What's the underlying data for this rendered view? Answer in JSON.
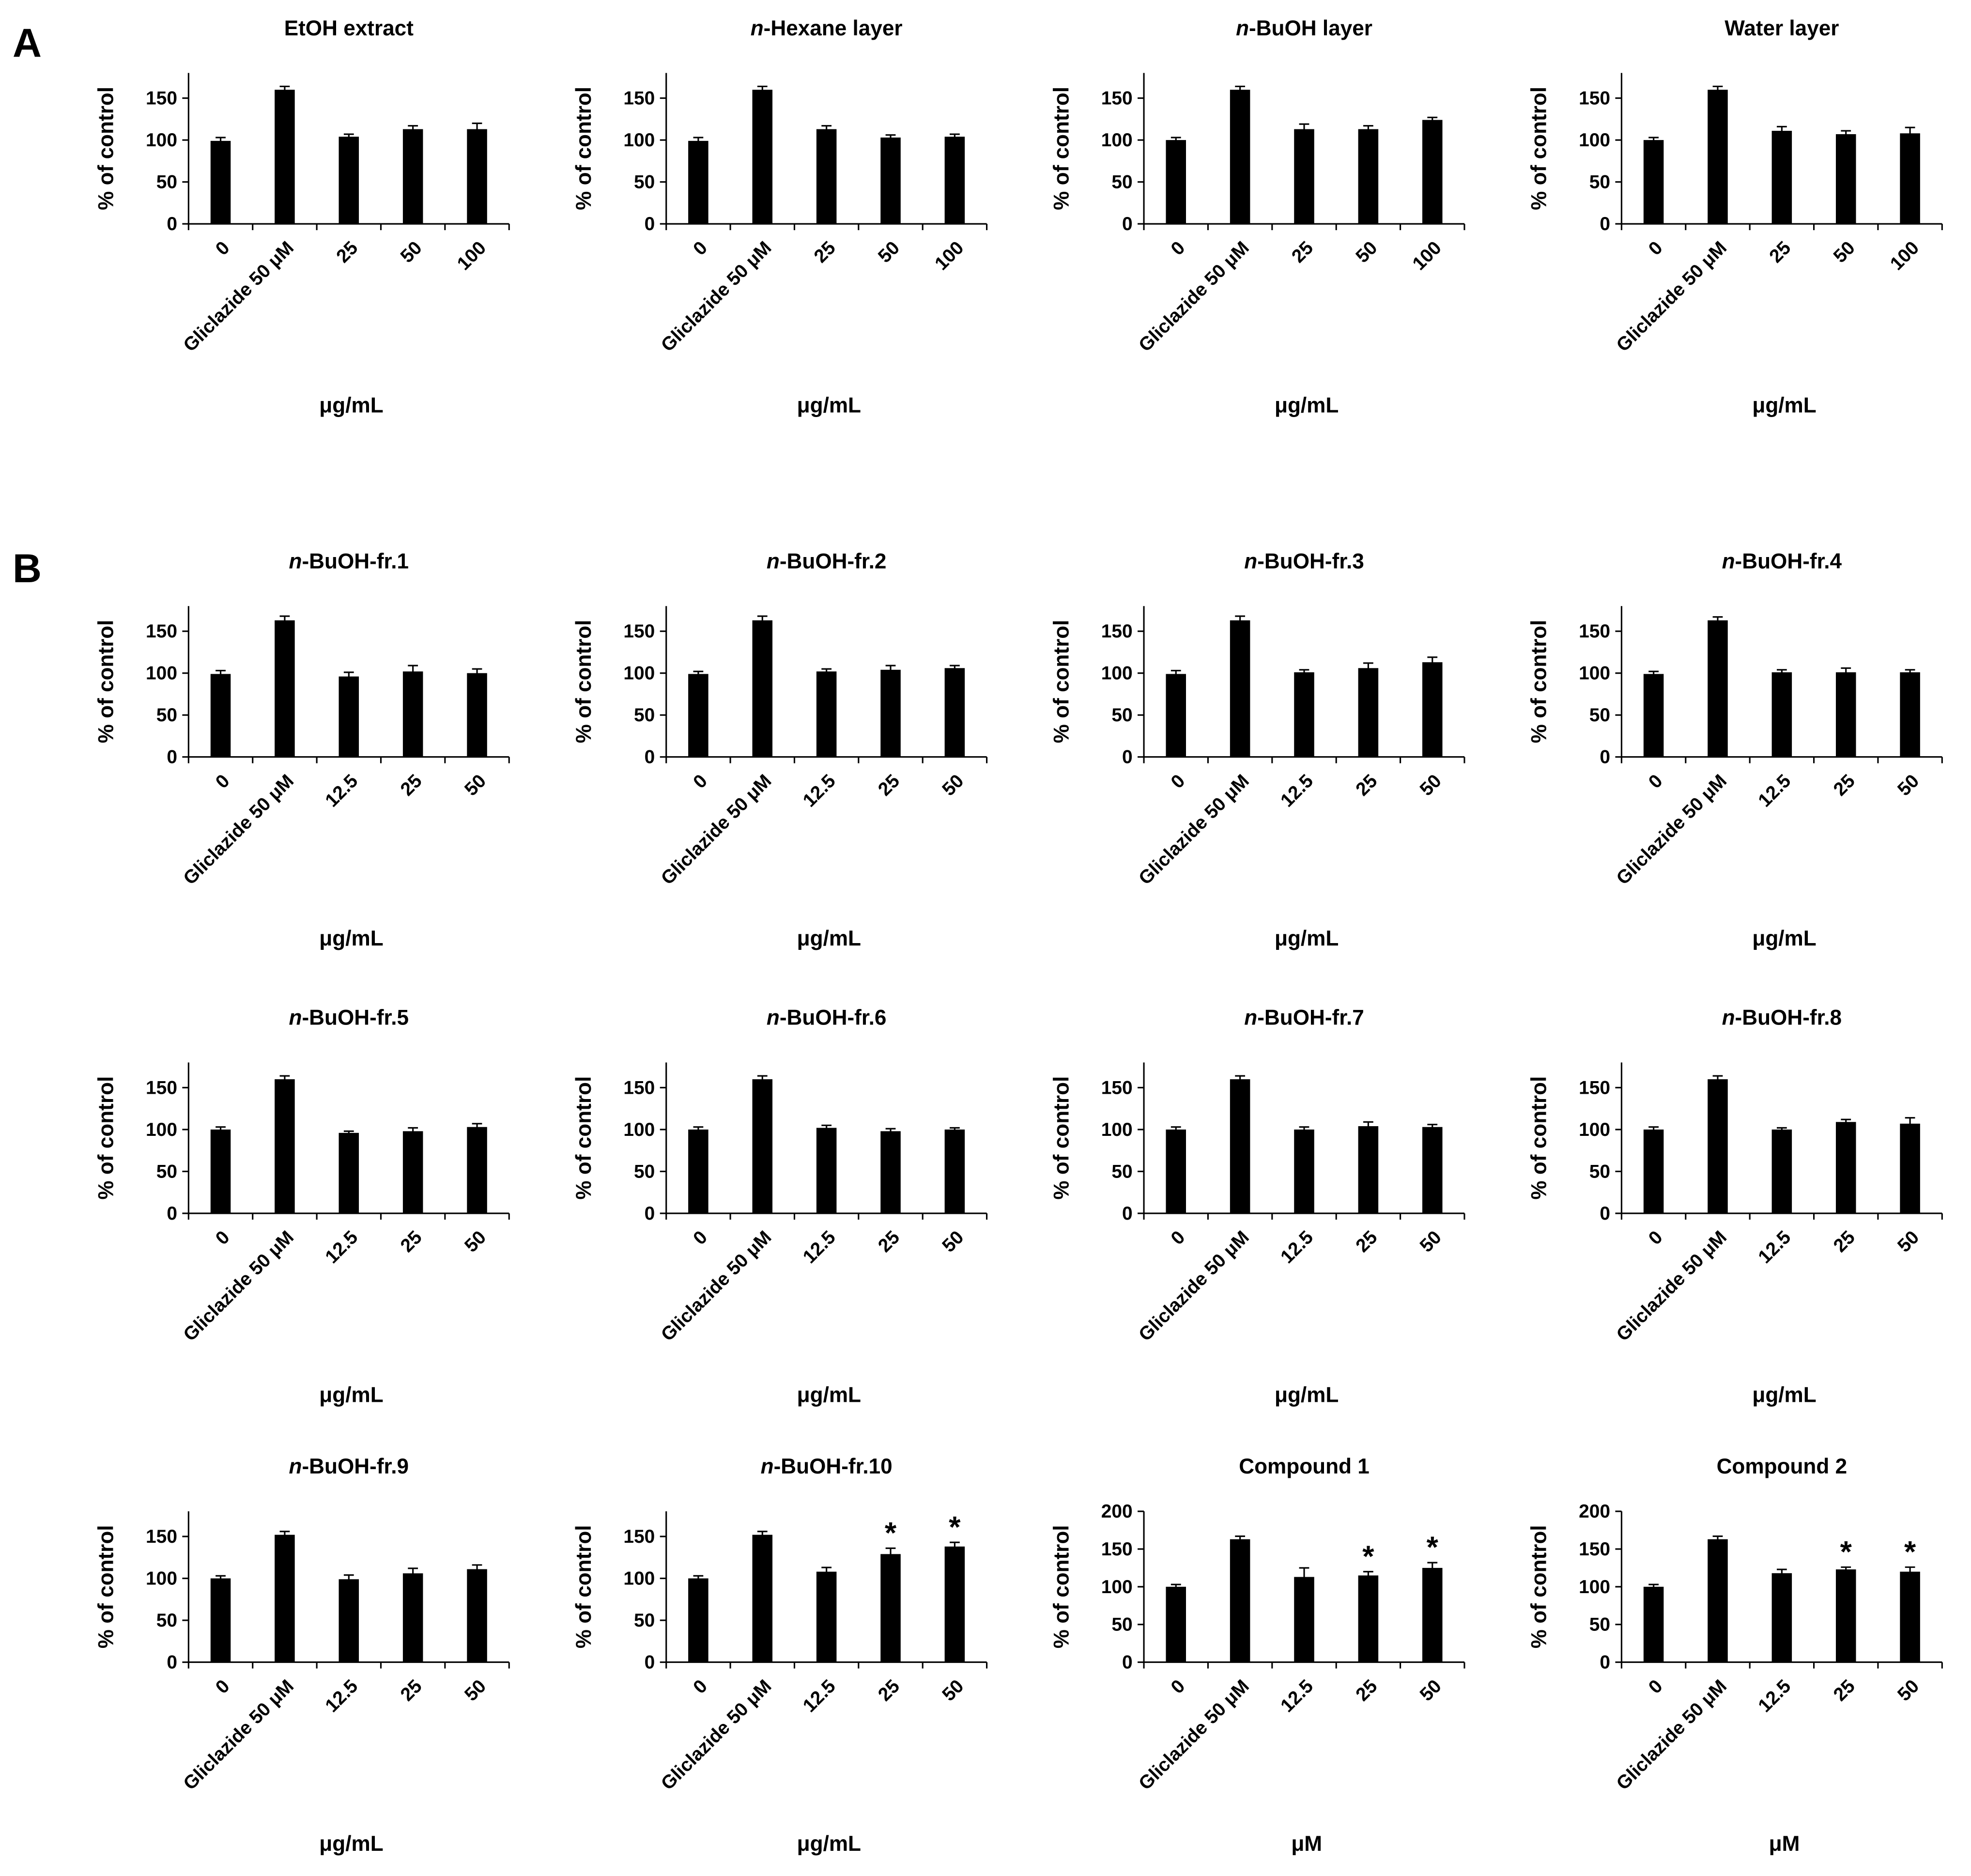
{
  "panel_labels": [
    "A",
    "B"
  ],
  "chart_data": [
    {
      "type": "bar",
      "title": "EtOH extract",
      "categories": [
        "0",
        "Gliclazide 50 μM",
        "25",
        "50",
        "100"
      ],
      "values": [
        99,
        160,
        104,
        113,
        113
      ],
      "errors": [
        4,
        4,
        3,
        4,
        7
      ],
      "ylim": [
        0,
        180
      ],
      "yticks": [
        0,
        50,
        100,
        150
      ],
      "xlabel": "μg/mL",
      "ylabel": "% of control",
      "color": "#000000"
    },
    {
      "type": "bar",
      "title": "n-Hexane layer",
      "categories": [
        "0",
        "Gliclazide 50 μM",
        "25",
        "50",
        "100"
      ],
      "values": [
        99,
        160,
        113,
        103,
        104
      ],
      "errors": [
        4,
        4,
        4,
        3,
        3
      ],
      "ylim": [
        0,
        180
      ],
      "yticks": [
        0,
        50,
        100,
        150
      ],
      "xlabel": "μg/mL",
      "ylabel": "% of control",
      "color": "#000000"
    },
    {
      "type": "bar",
      "title": "n-BuOH layer",
      "categories": [
        "0",
        "Gliclazide 50 μM",
        "25",
        "50",
        "100"
      ],
      "values": [
        100,
        160,
        113,
        113,
        124
      ],
      "errors": [
        3,
        4,
        6,
        4,
        3
      ],
      "ylim": [
        0,
        180
      ],
      "yticks": [
        0,
        50,
        100,
        150
      ],
      "xlabel": "μg/mL",
      "ylabel": "% of control",
      "color": "#000000"
    },
    {
      "type": "bar",
      "title": "Water layer",
      "categories": [
        "0",
        "Gliclazide 50 μM",
        "25",
        "50",
        "100"
      ],
      "values": [
        100,
        160,
        111,
        107,
        108
      ],
      "errors": [
        3,
        4,
        5,
        4,
        7
      ],
      "ylim": [
        0,
        180
      ],
      "yticks": [
        0,
        50,
        100,
        150
      ],
      "xlabel": "μg/mL",
      "ylabel": "% of control",
      "color": "#000000"
    },
    {
      "type": "bar",
      "title": "n-BuOH-fr.1",
      "categories": [
        "0",
        "Gliclazide 50 μM",
        "12.5",
        "25",
        "50"
      ],
      "values": [
        99,
        163,
        96,
        102,
        100
      ],
      "errors": [
        4,
        5,
        5,
        7,
        5
      ],
      "ylim": [
        0,
        180
      ],
      "yticks": [
        0,
        50,
        100,
        150
      ],
      "xlabel": "μg/mL",
      "ylabel": "% of control",
      "color": "#000000"
    },
    {
      "type": "bar",
      "title": "n-BuOH-fr.2",
      "categories": [
        "0",
        "Gliclazide 50 μM",
        "12.5",
        "25",
        "50"
      ],
      "values": [
        99,
        163,
        102,
        104,
        106
      ],
      "errors": [
        3,
        5,
        3,
        5,
        3
      ],
      "ylim": [
        0,
        180
      ],
      "yticks": [
        0,
        50,
        100,
        150
      ],
      "xlabel": "μg/mL",
      "ylabel": "% of control",
      "color": "#000000"
    },
    {
      "type": "bar",
      "title": "n-BuOH-fr.3",
      "categories": [
        "0",
        "Gliclazide 50 μM",
        "12.5",
        "25",
        "50"
      ],
      "values": [
        99,
        163,
        101,
        106,
        113
      ],
      "errors": [
        4,
        5,
        3,
        6,
        6
      ],
      "ylim": [
        0,
        180
      ],
      "yticks": [
        0,
        50,
        100,
        150
      ],
      "xlabel": "μg/mL",
      "ylabel": "% of control",
      "color": "#000000"
    },
    {
      "type": "bar",
      "title": "n-BuOH-fr.4",
      "categories": [
        "0",
        "Gliclazide 50 μM",
        "12.5",
        "25",
        "50"
      ],
      "values": [
        99,
        163,
        101,
        101,
        101
      ],
      "errors": [
        3,
        4,
        3,
        5,
        3
      ],
      "ylim": [
        0,
        180
      ],
      "yticks": [
        0,
        50,
        100,
        150
      ],
      "xlabel": "μg/mL",
      "ylabel": "% of control",
      "color": "#000000"
    },
    {
      "type": "bar",
      "title": "n-BuOH-fr.5",
      "categories": [
        "0",
        "Gliclazide 50 μM",
        "12.5",
        "25",
        "50"
      ],
      "values": [
        100,
        160,
        96,
        98,
        103
      ],
      "errors": [
        3,
        4,
        2,
        4,
        4
      ],
      "ylim": [
        0,
        180
      ],
      "yticks": [
        0,
        50,
        100,
        150
      ],
      "xlabel": "μg/mL",
      "ylabel": "% of control",
      "color": "#000000"
    },
    {
      "type": "bar",
      "title": "n-BuOH-fr.6",
      "categories": [
        "0",
        "Gliclazide 50 μM",
        "12.5",
        "25",
        "50"
      ],
      "values": [
        100,
        160,
        102,
        98,
        100
      ],
      "errors": [
        3,
        4,
        3,
        3,
        2
      ],
      "ylim": [
        0,
        180
      ],
      "yticks": [
        0,
        50,
        100,
        150
      ],
      "xlabel": "μg/mL",
      "ylabel": "% of control",
      "color": "#000000"
    },
    {
      "type": "bar",
      "title": "n-BuOH-fr.7",
      "categories": [
        "0",
        "Gliclazide 50 μM",
        "12.5",
        "25",
        "50"
      ],
      "values": [
        100,
        160,
        100,
        104,
        103
      ],
      "errors": [
        3,
        4,
        3,
        5,
        3
      ],
      "ylim": [
        0,
        180
      ],
      "yticks": [
        0,
        50,
        100,
        150
      ],
      "xlabel": "μg/mL",
      "ylabel": "% of control",
      "color": "#000000"
    },
    {
      "type": "bar",
      "title": "n-BuOH-fr.8",
      "categories": [
        "0",
        "Gliclazide 50 μM",
        "12.5",
        "25",
        "50"
      ],
      "values": [
        100,
        160,
        100,
        109,
        107
      ],
      "errors": [
        3,
        4,
        2,
        3,
        7
      ],
      "ylim": [
        0,
        180
      ],
      "yticks": [
        0,
        50,
        100,
        150
      ],
      "xlabel": "μg/mL",
      "ylabel": "% of control",
      "color": "#000000"
    },
    {
      "type": "bar",
      "title": "n-BuOH-fr.9",
      "categories": [
        "0",
        "Gliclazide 50 μM",
        "12.5",
        "25",
        "50"
      ],
      "values": [
        100,
        152,
        99,
        106,
        111
      ],
      "errors": [
        3,
        4,
        5,
        6,
        5
      ],
      "ylim": [
        0,
        180
      ],
      "yticks": [
        0,
        50,
        100,
        150
      ],
      "xlabel": "μg/mL",
      "ylabel": "% of control",
      "color": "#000000"
    },
    {
      "type": "bar",
      "title": "n-BuOH-fr.10",
      "categories": [
        "0",
        "Gliclazide 50 μM",
        "12.5",
        "25",
        "50"
      ],
      "values": [
        100,
        152,
        108,
        129,
        138
      ],
      "errors": [
        3,
        4,
        5,
        7,
        5
      ],
      "significance": [
        null,
        null,
        null,
        "*",
        "*"
      ],
      "ylim": [
        0,
        180
      ],
      "yticks": [
        0,
        50,
        100,
        150
      ],
      "xlabel": "μg/mL",
      "ylabel": "% of control",
      "color": "#000000"
    },
    {
      "type": "bar",
      "title": "Compound 1",
      "categories": [
        "0",
        "Gliclazide 50 μM",
        "12.5",
        "25",
        "50"
      ],
      "values": [
        100,
        163,
        113,
        115,
        125
      ],
      "errors": [
        3,
        4,
        12,
        5,
        7
      ],
      "significance": [
        null,
        null,
        null,
        "*",
        "*"
      ],
      "ylim": [
        0,
        200
      ],
      "yticks": [
        0,
        50,
        100,
        150,
        200
      ],
      "xlabel": "μM",
      "ylabel": "% of control",
      "color": "#000000"
    },
    {
      "type": "bar",
      "title": "Compound 2",
      "categories": [
        "0",
        "Gliclazide 50 μM",
        "12.5",
        "25",
        "50"
      ],
      "values": [
        100,
        163,
        118,
        123,
        120
      ],
      "errors": [
        3,
        4,
        5,
        3,
        6
      ],
      "significance": [
        null,
        null,
        null,
        "*",
        "*"
      ],
      "ylim": [
        0,
        200
      ],
      "yticks": [
        0,
        50,
        100,
        150,
        200
      ],
      "xlabel": "μM",
      "ylabel": "% of control",
      "color": "#000000"
    }
  ]
}
